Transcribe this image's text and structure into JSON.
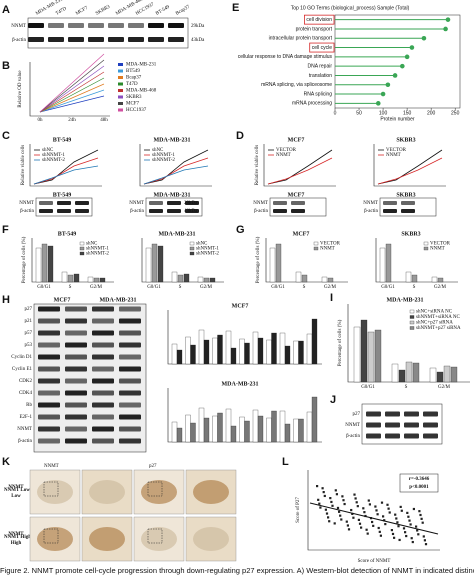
{
  "caption": "Figure 2. NNMT promote cell-cycle progression through down-regulating p27 expression. A) Western-blot detection of NNMT in indicated distinct",
  "panel_letters": [
    "A",
    "B",
    "C",
    "D",
    "E",
    "F",
    "G",
    "H",
    "I",
    "J",
    "K",
    "L"
  ],
  "blot_a": {
    "lanes": [
      "MDA-MB-231",
      "T47D",
      "MCF7",
      "SKBR3",
      "MDA-MB-468",
      "HCC1937",
      "BT-549",
      "Bcap37"
    ],
    "rows": [
      "NNMT",
      "β-actin"
    ],
    "sizes": [
      "29kDa",
      "43kDa"
    ]
  },
  "chart_data": {
    "type": "lollipop",
    "title": "Top 10 GO Terms (biological_process) Sample (Total)",
    "categories": [
      "cell division",
      "protein transport",
      "intracellular protein transport",
      "cell cycle",
      "cellular response to DNA damage stimulus",
      "DNA repair",
      "translation",
      "mRNA splicing, via spliceosome",
      "RNA splicing",
      "mRNA processing"
    ],
    "values": [
      235,
      230,
      185,
      160,
      150,
      140,
      125,
      110,
      100,
      90
    ],
    "color": "#3aa655",
    "highlight_color": "#d62728",
    "highlighted": [
      0,
      3
    ],
    "xlabel": "Protein number",
    "xlim": [
      0,
      260
    ],
    "xticks": [
      0,
      50,
      100,
      150,
      200,
      250
    ]
  },
  "panel_b": {
    "ylabel": "Relative OD value",
    "xcats": [
      "0h",
      "24h",
      "48h"
    ],
    "legend": [
      "MDA-MB-231",
      "BT549",
      "Bcap37",
      "T47D",
      "MDA-MB-468",
      "SKBR3",
      "MCF7",
      "HCC1937"
    ]
  },
  "panel_c": {
    "titles": [
      "BT-549",
      "MDA-MB-231"
    ],
    "legend": [
      "shNC",
      "shNNMT-1",
      "shNNMT-2"
    ],
    "ylabel": "Relative viable cells",
    "rows": [
      "NNMT",
      "β-actin"
    ],
    "sizes": [
      "29kDa",
      "43kDa"
    ]
  },
  "panel_d": {
    "titles": [
      "MCF7",
      "SKBR3"
    ],
    "legend": [
      "VECTOR",
      "NNMT"
    ],
    "ylabel": "Relative viable cells",
    "rows": [
      "NNMT",
      "β-actin"
    ]
  },
  "panel_f": {
    "titles": [
      "BT-549",
      "MDA-MB-231"
    ],
    "phases": [
      "G0/G1",
      "S",
      "G2/M"
    ],
    "ylabel": "Percentage of cells (%)",
    "legend": [
      "shNC",
      "shNNMT-1",
      "shNNMT-2"
    ]
  },
  "panel_g": {
    "titles": [
      "MCF7",
      "SKBR3"
    ],
    "phases": [
      "G0/G1",
      "S",
      "G2/M"
    ],
    "ylabel": "Percentage of cells (%)",
    "legend": [
      "VECTOR",
      "NNMT"
    ]
  },
  "panel_h": {
    "titles": [
      "MCF7",
      "MDA-MB-231"
    ],
    "proteins": [
      "p27",
      "p21",
      "p57",
      "p53",
      "Cyclin D1",
      "Cyclin E1",
      "CDK2",
      "CDK4",
      "Rb",
      "E2F-1",
      "NNMT",
      "β-actin"
    ]
  },
  "panel_i": {
    "title": "MDA-MB-231",
    "ylabel": "Percentage of cells (%)",
    "phases": [
      "G0/G1",
      "S",
      "G2/M"
    ],
    "legend": [
      "shNC+siRNA NC",
      "shNNMT+siRNA NC",
      "shNC+p27 siRNA",
      "shNNMT+p27 siRNA"
    ]
  },
  "panel_j": {
    "rows": [
      "p27",
      "NNMT",
      "β-actin"
    ]
  },
  "panel_k": {
    "headers": [
      "NNMT",
      "p27"
    ],
    "rows": [
      "NNMT\nLow",
      "NNMT\nHigh"
    ]
  },
  "panel_l": {
    "ylabel": "Score of P27",
    "xlabel": "Score of NNMT",
    "r": "r=-0.3646",
    "p": "p<0.0001"
  }
}
